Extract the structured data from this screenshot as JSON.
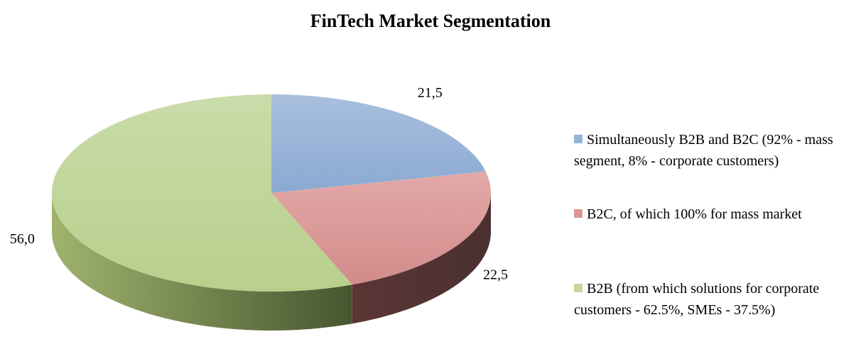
{
  "chart_data": {
    "type": "pie",
    "title": "FinTech Market Segmentation",
    "categories": [
      "Simultaneously B2B and B2C (92% - mass segment, 8% - corporate customers)",
      "B2C, of which 100% for mass market",
      "B2B (from which solutions for corporate customers - 62.5%, SMEs - 37.5%)"
    ],
    "values": [
      21.5,
      22.5,
      56.0
    ],
    "value_labels": [
      "21,5",
      "22,5",
      "56,0"
    ],
    "colors": [
      "#95b3d7",
      "#d99694",
      "#c3d69b"
    ],
    "legend": "right"
  }
}
